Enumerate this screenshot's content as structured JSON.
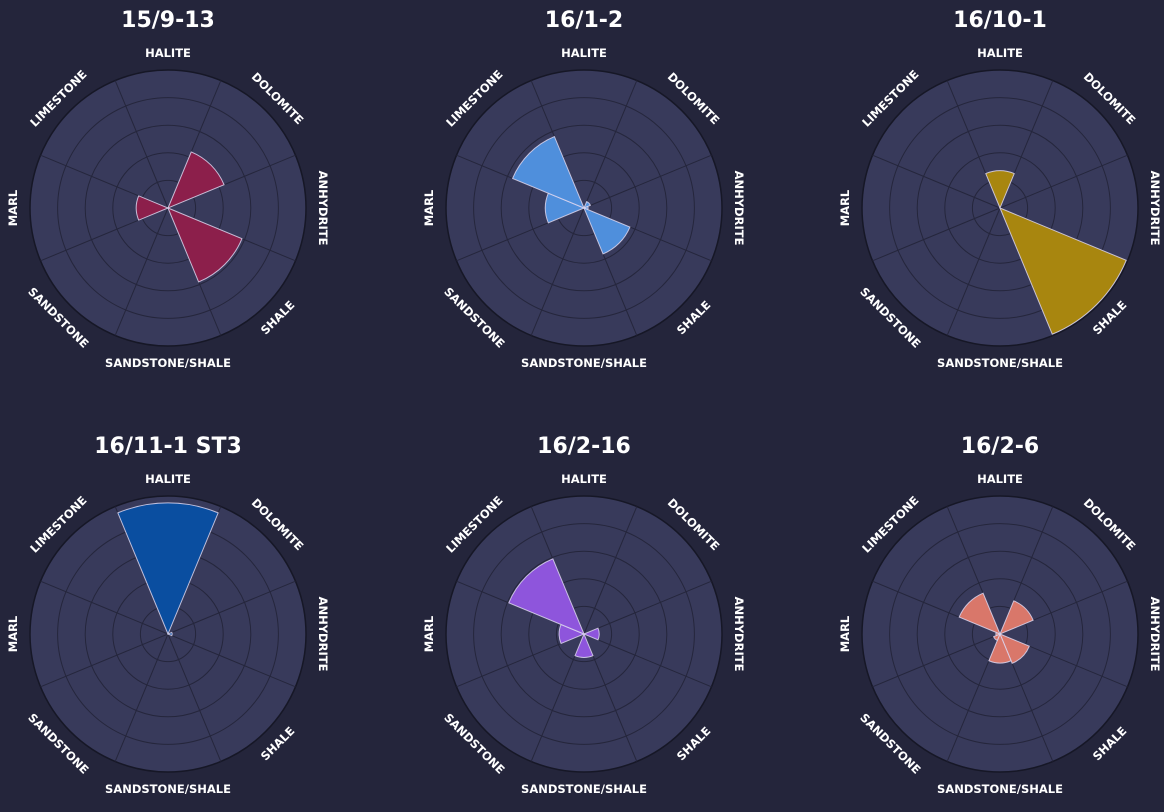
{
  "chart_data": [
    {
      "type": "polar-bar",
      "title": "15/9-13",
      "categories": [
        "HALITE",
        "DOLOMITE",
        "ANHYDRITE",
        "SHALE",
        "SANDSTONE/SHALE",
        "SANDSTONE",
        "MARL",
        "LIMESTONE"
      ],
      "values": [
        0,
        0.44,
        0,
        0.58,
        0,
        0,
        0.23,
        0
      ],
      "rmax": 1.0,
      "color": "#8c1f4b"
    },
    {
      "type": "polar-bar",
      "title": "16/1-2",
      "categories": [
        "HALITE",
        "DOLOMITE",
        "ANHYDRITE",
        "SHALE",
        "SANDSTONE/SHALE",
        "SANDSTONE",
        "MARL",
        "LIMESTONE"
      ],
      "values": [
        0,
        0.05,
        0.03,
        0.36,
        0,
        0,
        0.28,
        0.56
      ],
      "rmax": 1.0,
      "color": "#4f8fdc"
    },
    {
      "type": "polar-bar",
      "title": "16/10-1",
      "categories": [
        "HALITE",
        "DOLOMITE",
        "ANHYDRITE",
        "SHALE",
        "SANDSTONE/SHALE",
        "SANDSTONE",
        "MARL",
        "LIMESTONE"
      ],
      "values": [
        0.27,
        0,
        0,
        0.99,
        0,
        0,
        0,
        0
      ],
      "rmax": 1.0,
      "color": "#a8860f"
    },
    {
      "type": "polar-bar",
      "title": "16/11-1 ST3",
      "categories": [
        "HALITE",
        "DOLOMITE",
        "ANHYDRITE",
        "SHALE",
        "SANDSTONE/SHALE",
        "SANDSTONE",
        "MARL",
        "LIMESTONE"
      ],
      "values": [
        0.95,
        0,
        0.03,
        0,
        0,
        0,
        0,
        0
      ],
      "rmax": 1.0,
      "color": "#0a4ea0"
    },
    {
      "type": "polar-bar",
      "title": "16/2-16",
      "categories": [
        "HALITE",
        "DOLOMITE",
        "ANHYDRITE",
        "SHALE",
        "SANDSTONE/SHALE",
        "SANDSTONE",
        "MARL",
        "LIMESTONE"
      ],
      "values": [
        0,
        0,
        0.11,
        0,
        0.17,
        0,
        0.18,
        0.59
      ],
      "rmax": 1.0,
      "color": "#8e55dc"
    },
    {
      "type": "polar-bar",
      "title": "16/2-6",
      "categories": [
        "HALITE",
        "DOLOMITE",
        "ANHYDRITE",
        "SHALE",
        "SANDSTONE/SHALE",
        "SANDSTONE",
        "MARL",
        "LIMESTONE"
      ],
      "values": [
        0,
        0.26,
        0,
        0.23,
        0.21,
        0.05,
        0.03,
        0.32
      ],
      "rmax": 1.0,
      "color": "#d9776a"
    }
  ]
}
